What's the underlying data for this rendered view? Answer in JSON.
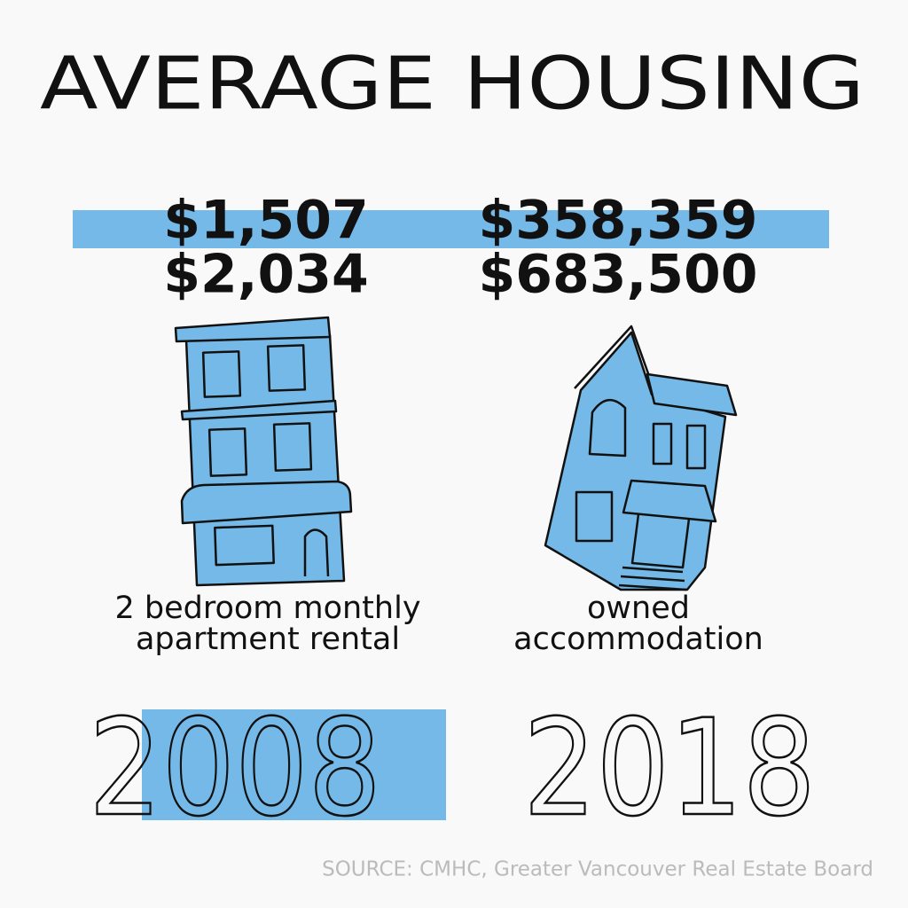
{
  "title": "AVERAGE HOUSING",
  "columns": [
    {
      "values": [
        "$1,507",
        "$2,034"
      ],
      "label": [
        "2 bedroom monthly",
        "apartment rental"
      ]
    },
    {
      "values": [
        "$358,359",
        "$683,500"
      ],
      "label": [
        "owned",
        "accommodation"
      ]
    }
  ],
  "years": [
    "2008",
    "2018"
  ],
  "source": "SOURCE: CMHC, Greater Vancouver Real Estate Board"
}
